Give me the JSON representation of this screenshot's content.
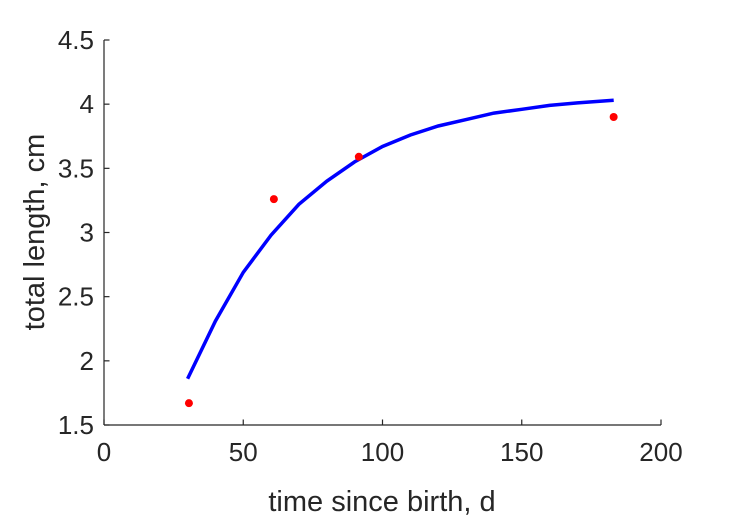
{
  "chart_data": {
    "type": "scatter",
    "title": "",
    "xlabel": "time since birth, d",
    "ylabel": "total length, cm",
    "xlim": [
      0,
      200
    ],
    "ylim": [
      1.5,
      4.5
    ],
    "xticks": [
      0,
      50,
      100,
      150,
      200
    ],
    "yticks": [
      1.5,
      2,
      2.5,
      3,
      3.5,
      4,
      4.5
    ],
    "xtick_labels": [
      "0",
      "50",
      "100",
      "150",
      "200"
    ],
    "ytick_labels": [
      "1.5",
      "2",
      "2.5",
      "3",
      "3.5",
      "4",
      "4.5"
    ],
    "grid": false,
    "series": [
      {
        "kind": "scatter",
        "color": "#ff0000",
        "x": [
          30.5,
          61,
          91.5,
          183
        ],
        "y": [
          1.67,
          3.26,
          3.59,
          3.9
        ]
      },
      {
        "kind": "line",
        "color": "#0000ff",
        "x": [
          30,
          40,
          50,
          60,
          70,
          80,
          90,
          100,
          110,
          120,
          130,
          140,
          150,
          160,
          170,
          183
        ],
        "y": [
          1.86,
          2.31,
          2.69,
          2.98,
          3.22,
          3.4,
          3.55,
          3.67,
          3.76,
          3.83,
          3.88,
          3.93,
          3.96,
          3.99,
          4.01,
          4.03
        ]
      }
    ]
  }
}
